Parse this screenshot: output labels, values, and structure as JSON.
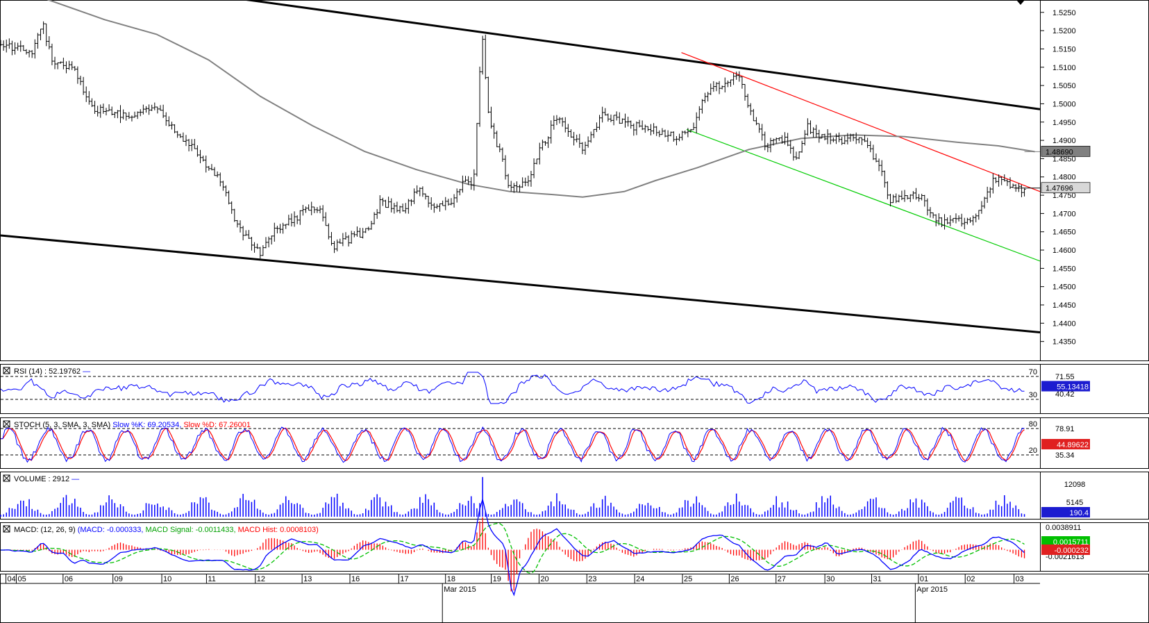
{
  "chart_data": {
    "type": "candlestick",
    "instrument_timeframe": "",
    "main_panel": {
      "ylim": [
        1.43,
        1.528
      ],
      "yticks": [
        "1.5250",
        "1.5200",
        "1.5150",
        "1.5100",
        "1.5050",
        "1.5000",
        "1.4950",
        "1.4900",
        "1.4850",
        "1.4800",
        "1.4750",
        "1.4700",
        "1.4650",
        "1.4600",
        "1.4550",
        "1.4500",
        "1.4450",
        "1.4400",
        "1.4350"
      ],
      "ytick_values": [
        1.525,
        1.52,
        1.515,
        1.51,
        1.505,
        1.5,
        1.495,
        1.49,
        1.485,
        1.48,
        1.475,
        1.47,
        1.465,
        1.46,
        1.455,
        1.45,
        1.445,
        1.44,
        1.435
      ],
      "price_label": {
        "text": "1.47696",
        "value": 1.47696
      },
      "ma_label": {
        "text": "1.48690",
        "value": 1.4869
      },
      "series_color": "#000000",
      "price_path": [
        [
          0,
          1.516
        ],
        [
          0.03,
          1.514
        ],
        [
          0.04,
          1.522
        ],
        [
          0.05,
          1.512
        ],
        [
          0.07,
          1.51
        ],
        [
          0.085,
          1.5
        ],
        [
          0.095,
          1.498
        ],
        [
          0.12,
          1.497
        ],
        [
          0.15,
          1.499
        ],
        [
          0.17,
          1.492
        ],
        [
          0.19,
          1.486
        ],
        [
          0.215,
          1.478
        ],
        [
          0.225,
          1.467
        ],
        [
          0.25,
          1.459
        ],
        [
          0.265,
          1.466
        ],
        [
          0.29,
          1.47
        ],
        [
          0.305,
          1.472
        ],
        [
          0.32,
          1.461
        ],
        [
          0.335,
          1.463
        ],
        [
          0.355,
          1.466
        ],
        [
          0.365,
          1.473
        ],
        [
          0.385,
          1.471
        ],
        [
          0.405,
          1.477
        ],
        [
          0.415,
          1.471
        ],
        [
          0.435,
          1.474
        ],
        [
          0.445,
          1.479
        ],
        [
          0.455,
          1.478
        ],
        [
          0.463,
          1.52
        ],
        [
          0.47,
          1.496
        ],
        [
          0.48,
          1.487
        ],
        [
          0.49,
          1.477
        ],
        [
          0.505,
          1.478
        ],
        [
          0.52,
          1.488
        ],
        [
          0.535,
          1.496
        ],
        [
          0.56,
          1.488
        ],
        [
          0.58,
          1.497
        ],
        [
          0.605,
          1.494
        ],
        [
          0.63,
          1.493
        ],
        [
          0.65,
          1.491
        ],
        [
          0.665,
          1.493
        ],
        [
          0.675,
          1.501
        ],
        [
          0.69,
          1.505
        ],
        [
          0.71,
          1.507
        ],
        [
          0.72,
          1.499
        ],
        [
          0.735,
          1.489
        ],
        [
          0.755,
          1.49
        ],
        [
          0.765,
          1.484
        ],
        [
          0.775,
          1.494
        ],
        [
          0.79,
          1.491
        ],
        [
          0.81,
          1.49
        ],
        [
          0.83,
          1.491
        ],
        [
          0.845,
          1.483
        ],
        [
          0.855,
          1.474
        ],
        [
          0.87,
          1.474
        ],
        [
          0.885,
          1.475
        ],
        [
          0.9,
          1.468
        ],
        [
          0.91,
          1.467
        ],
        [
          0.92,
          1.468
        ],
        [
          0.93,
          1.468
        ],
        [
          0.945,
          1.472
        ],
        [
          0.955,
          1.479
        ],
        [
          0.965,
          1.479
        ],
        [
          0.985,
          1.4765
        ]
      ],
      "ma_path": [
        [
          0.04,
          1.529
        ],
        [
          0.1,
          1.523
        ],
        [
          0.15,
          1.519
        ],
        [
          0.2,
          1.512
        ],
        [
          0.25,
          1.502
        ],
        [
          0.3,
          1.494
        ],
        [
          0.35,
          1.487
        ],
        [
          0.4,
          1.482
        ],
        [
          0.45,
          1.478
        ],
        [
          0.49,
          1.476
        ],
        [
          0.53,
          1.4752
        ],
        [
          0.56,
          1.4745
        ],
        [
          0.6,
          1.476
        ],
        [
          0.63,
          1.479
        ],
        [
          0.67,
          1.4825
        ],
        [
          0.72,
          1.4875
        ],
        [
          0.77,
          1.4905
        ],
        [
          0.82,
          1.4915
        ],
        [
          0.87,
          1.491
        ],
        [
          0.92,
          1.4895
        ],
        [
          0.96,
          1.4885
        ],
        [
          0.995,
          1.4869
        ]
      ],
      "trend_lines": [
        {
          "name": "channel-upper",
          "color": "#000000",
          "from": [
            0.21,
            1.5295
          ],
          "to": [
            1.0,
            1.4985
          ]
        },
        {
          "name": "channel-lower",
          "color": "#000000",
          "from": [
            0.0,
            1.464
          ],
          "to": [
            1.0,
            1.4375
          ]
        },
        {
          "name": "resistance-red",
          "color": "#ff0000",
          "from": [
            0.655,
            1.514
          ],
          "to": [
            1.0,
            1.476
          ]
        },
        {
          "name": "support-green",
          "color": "#00cc00",
          "from": [
            0.66,
            1.493
          ],
          "to": [
            1.0,
            1.457
          ]
        }
      ]
    },
    "panels": [
      {
        "name": "rsi",
        "title": "RSI (14) : 52.19762",
        "title_color": "#0000ff",
        "levels": [
          {
            "label": "70"
          },
          {
            "label": "30"
          }
        ],
        "tick_labels": [
          {
            "text": "71.55"
          },
          {
            "text": "40.42"
          }
        ],
        "value_label": {
          "text": "55.13418",
          "bg": "#1c1cd0"
        },
        "series": [
          {
            "name": "RSI",
            "color": "#0000ff"
          }
        ]
      },
      {
        "name": "stoch",
        "title_parts": [
          {
            "text": "STOCH (5, 3, SMA, 3, SMA) ",
            "color": "#000000"
          },
          {
            "text": "Slow %K: 69.20534, ",
            "color": "#0000ff"
          },
          {
            "text": "Slow %D: 67.26001",
            "color": "#ff0000"
          }
        ],
        "levels": [
          {
            "label": "80"
          },
          {
            "label": "20"
          }
        ],
        "tick_labels": [
          {
            "text": "78.91"
          },
          {
            "text": "35.34"
          }
        ],
        "value_label": {
          "text": "44.89622",
          "bg": "#e02020"
        },
        "series": [
          {
            "name": "Slow %K",
            "color": "#0000ff"
          },
          {
            "name": "Slow %D",
            "color": "#ff0000"
          }
        ]
      },
      {
        "name": "volume",
        "title": "VOLUME : 2912",
        "tick_labels": [
          {
            "text": "12098"
          },
          {
            "text": "5145"
          }
        ],
        "value_label": {
          "text": "190.4",
          "bg": "#1c1cd0"
        },
        "series": [
          {
            "name": "Volume",
            "color": "#0000ff"
          }
        ]
      },
      {
        "name": "macd",
        "title_parts": [
          {
            "text": "MACD: (12, 26, 9) ",
            "color": "#000000"
          },
          {
            "text": "(MACD: -0.000333, ",
            "color": "#0000ff"
          },
          {
            "text": "MACD Signal: -0.0011433, ",
            "color": "#00a000"
          },
          {
            "text": "MACD Hist: 0.0008103)",
            "color": "#ff0000"
          }
        ],
        "tick_labels": [
          {
            "text": "0.0038911"
          },
          {
            "text": "-0.0021613"
          }
        ],
        "value_labels": [
          {
            "text": "0.0015711",
            "bg": "#00c000"
          },
          {
            "text": "-0.000232",
            "bg": "#e02020"
          }
        ],
        "series": [
          {
            "name": "MACD",
            "color": "#0000ff"
          },
          {
            "name": "Signal",
            "color": "#00c000"
          },
          {
            "name": "Hist",
            "color": "#ff0000"
          }
        ]
      }
    ],
    "x_axis": {
      "day_labels": [
        "04",
        "05",
        "06",
        "09",
        "10",
        "11",
        "12",
        "13",
        "16",
        "17",
        "18",
        "19",
        "20",
        "23",
        "24",
        "25",
        "26",
        "27",
        "30",
        "31",
        "01",
        "02",
        "03"
      ],
      "month_labels": [
        {
          "text": "Mar 2015"
        },
        {
          "text": "Apr 2015"
        }
      ]
    },
    "grid": false
  }
}
